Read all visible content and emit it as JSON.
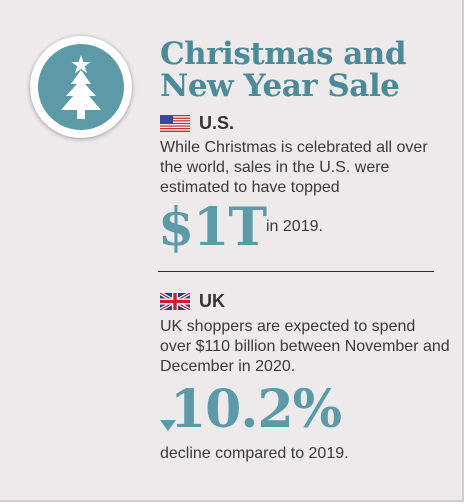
{
  "title": "Christmas and New Year Sale",
  "icons": {
    "badge": "christmas-tree-icon",
    "us_flag": "us-flag-icon",
    "uk_flag": "uk-flag-icon",
    "decline": "down-arrow-icon"
  },
  "colors": {
    "accent": "#5b9aa6",
    "title": "#4b8a96",
    "background": "#eceaeb",
    "text": "#3a3a3a"
  },
  "us": {
    "region": "U.S.",
    "text": "While Christmas is celebrated all over the world, sales in the U.S. were estimated to have topped",
    "stat": "$1T",
    "stat_suffix": "in 2019."
  },
  "uk": {
    "region": "UK",
    "text": "UK shoppers are expected to spend over $110 billion between November and December in 2020.",
    "stat": "10.2%",
    "stat_text": "decline compared to 2019."
  }
}
